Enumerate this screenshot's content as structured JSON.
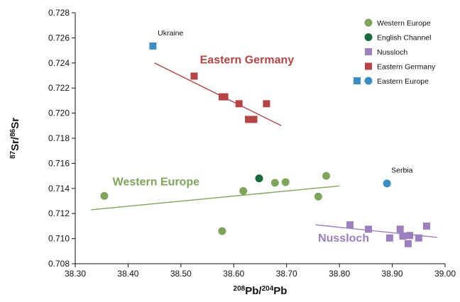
{
  "chart_data": {
    "type": "scatter",
    "xlabel": "208Pb/204Pb",
    "ylabel": "87Sr/86Sr",
    "xlim": [
      38.3,
      39.0
    ],
    "ylim": [
      0.708,
      0.728
    ],
    "x_ticks": [
      "38.30",
      "38.40",
      "38.50",
      "38.60",
      "38.70",
      "38.80",
      "38.90",
      "39.00"
    ],
    "y_ticks": [
      "0.708",
      "0.710",
      "0.712",
      "0.714",
      "0.716",
      "0.718",
      "0.720",
      "0.722",
      "0.724",
      "0.726",
      "0.728"
    ],
    "grid": false,
    "legend_position": "top-right",
    "legend": [
      "Western Europe",
      "English Channel",
      "Nussloch",
      "Eastern Germany",
      "Eastern Europe"
    ],
    "colors": {
      "western_europe": "#7fa55a",
      "english_channel": "#1a6b3c",
      "nussloch": "#9b7fbf",
      "eastern_germany": "#b54545",
      "eastern_europe": "#3a8ec4"
    },
    "series": [
      {
        "name": "Western Europe",
        "marker": "circle",
        "points": [
          [
            38.355,
            0.7134
          ],
          [
            38.578,
            0.7106
          ],
          [
            38.618,
            0.7138
          ],
          [
            38.678,
            0.71445
          ],
          [
            38.698,
            0.7145
          ],
          [
            38.76,
            0.71335
          ],
          [
            38.775,
            0.715
          ]
        ]
      },
      {
        "name": "English Channel",
        "marker": "circle",
        "points": [
          [
            38.648,
            0.7148
          ]
        ]
      },
      {
        "name": "Nussloch",
        "marker": "square",
        "points": [
          [
            38.82,
            0.7111
          ],
          [
            38.855,
            0.71075
          ],
          [
            38.895,
            0.71005
          ],
          [
            38.915,
            0.71075
          ],
          [
            38.92,
            0.7102
          ],
          [
            38.93,
            0.7096
          ],
          [
            38.933,
            0.71025
          ],
          [
            38.95,
            0.71005
          ],
          [
            38.965,
            0.711
          ]
        ]
      },
      {
        "name": "Eastern Germany",
        "marker": "square",
        "points": [
          [
            38.525,
            0.72295
          ],
          [
            38.578,
            0.7213
          ],
          [
            38.583,
            0.7213
          ],
          [
            38.61,
            0.72075
          ],
          [
            38.628,
            0.7195
          ],
          [
            38.638,
            0.7195
          ],
          [
            38.662,
            0.72075
          ]
        ]
      },
      {
        "name": "Eastern Europe",
        "marker": "square",
        "points": [
          [
            38.447,
            0.72535
          ]
        ]
      },
      {
        "name": "Eastern Europe",
        "marker": "circle",
        "points": [
          [
            38.89,
            0.7144
          ]
        ]
      }
    ],
    "trend_lines": [
      {
        "group": "Eastern Germany",
        "from": [
          38.45,
          0.724
        ],
        "to": [
          38.69,
          0.719
        ]
      },
      {
        "group": "Western Europe",
        "from": [
          38.33,
          0.7123
        ],
        "to": [
          38.8,
          0.7142
        ]
      },
      {
        "group": "Nussloch",
        "from": [
          38.755,
          0.7111
        ],
        "to": [
          38.985,
          0.7101
        ]
      }
    ],
    "group_labels": [
      {
        "text": "Eastern Germany",
        "group": "eastern_germany",
        "x": 38.625,
        "y": 0.72395
      },
      {
        "text": "Western Europe",
        "group": "western_europe",
        "x": 38.453,
        "y": 0.71425
      },
      {
        "text": "Nussloch",
        "group": "nussloch",
        "x": 38.808,
        "y": 0.70975
      }
    ],
    "point_labels": [
      {
        "text": "Ukraine",
        "x": 38.448,
        "y": 0.7262
      },
      {
        "text": "Serbia",
        "x": 38.89,
        "y": 0.71525
      }
    ]
  }
}
